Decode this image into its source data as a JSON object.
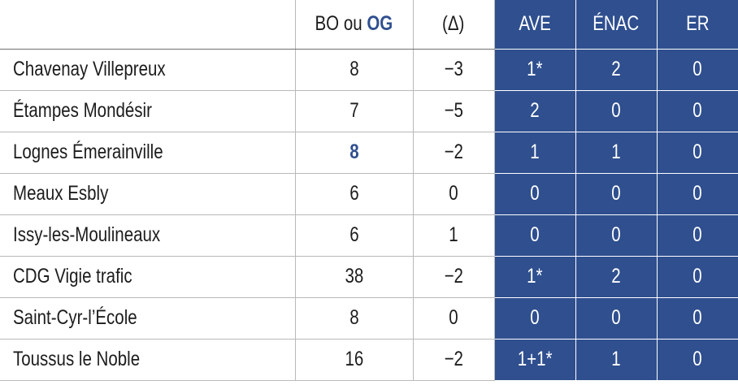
{
  "header": {
    "bo_prefix": "BO ou ",
    "bo_og": "OG",
    "delta": "(Δ)",
    "ave": "AVE",
    "enac": "ÉNAC",
    "er": "ER"
  },
  "rows": [
    {
      "name": "Chavenay Villepreux",
      "bo": "8",
      "delta": "−3",
      "ave": "1*",
      "enac": "2",
      "er": "0"
    },
    {
      "name": "Étampes Mondésir",
      "bo": "7",
      "delta": "−5",
      "ave": "2",
      "enac": "0",
      "er": "0"
    },
    {
      "name": "Lognes Émerainville",
      "bo": "8",
      "delta": "−2",
      "ave": "1",
      "enac": "1",
      "er": "0"
    },
    {
      "name": "Meaux Esbly",
      "bo": "6",
      "delta": "0",
      "ave": "0",
      "enac": "0",
      "er": "0"
    },
    {
      "name": "Issy-les-Moulineaux",
      "bo": "6",
      "delta": "1",
      "ave": "0",
      "enac": "0",
      "er": "0"
    },
    {
      "name": "CDG Vigie trafic",
      "bo": "38",
      "delta": "−2",
      "ave": "1*",
      "enac": "2",
      "er": "0"
    },
    {
      "name": "Saint-Cyr-l’École",
      "bo": "8",
      "delta": "0",
      "ave": "0",
      "enac": "0",
      "er": "0"
    },
    {
      "name": "Toussus le Noble",
      "bo": "16",
      "delta": "−2",
      "ave": "1+1*",
      "enac": "1",
      "er": "0"
    }
  ],
  "colors": {
    "accent": "#2f4f8f",
    "grid": "#b9b9b9"
  }
}
